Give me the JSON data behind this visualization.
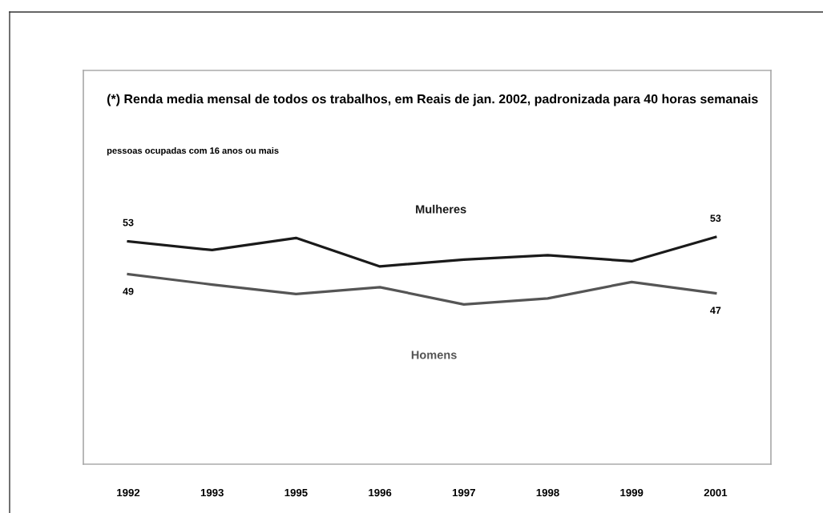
{
  "chart_data": {
    "type": "line",
    "title": "(*) Renda media mensal de todos os trabalhos, em Reais de jan. 2002, padronizada para 40 horas semanais",
    "subtitle": "pessoas ocupadas com 16 anos ou mais",
    "categories": [
      "1992",
      "1993",
      "1995",
      "1996",
      "1997",
      "1998",
      "1999",
      "2001"
    ],
    "ylim": [
      27,
      72.6
    ],
    "series": [
      {
        "name": "Mulheres",
        "color": "#1a1a1a",
        "values": [
          52.8,
          51.8,
          53.2,
          49.9,
          50.7,
          51.2,
          50.5,
          53.3
        ],
        "value_labels": [
          "53",
          null,
          null,
          null,
          null,
          null,
          null,
          "53"
        ]
      },
      {
        "name": "Homens",
        "color": "#555555",
        "values": [
          49.0,
          47.8,
          46.7,
          47.5,
          45.5,
          46.2,
          48.1,
          46.8
        ],
        "value_labels": [
          "49",
          null,
          null,
          null,
          null,
          null,
          null,
          "47"
        ]
      }
    ],
    "grid": false,
    "legend": false,
    "marker": "none",
    "line_style": "solid"
  }
}
